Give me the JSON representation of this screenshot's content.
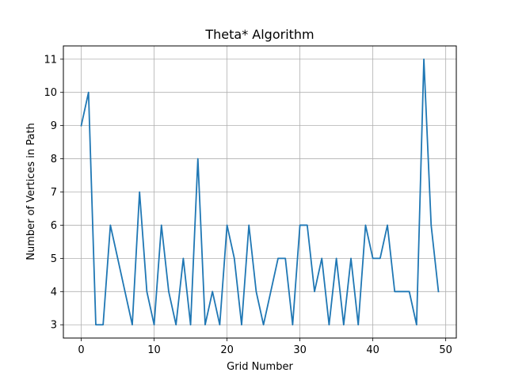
{
  "chart_data": {
    "type": "line",
    "title": "Theta* Algorithm",
    "xlabel": "Grid Number",
    "ylabel": "Number of Vertices in Path",
    "xlim": [
      -2.45,
      51.45
    ],
    "ylim": [
      2.6,
      11.4
    ],
    "xticks": [
      0,
      10,
      20,
      30,
      40,
      50
    ],
    "yticks": [
      3,
      4,
      5,
      6,
      7,
      8,
      9,
      10,
      11
    ],
    "grid": true,
    "series": [
      {
        "color": "#1f77b4",
        "x": [
          0,
          1,
          2,
          3,
          4,
          5,
          6,
          7,
          8,
          9,
          10,
          11,
          12,
          13,
          14,
          15,
          16,
          17,
          18,
          19,
          20,
          21,
          22,
          23,
          24,
          25,
          26,
          27,
          28,
          29,
          30,
          31,
          32,
          33,
          34,
          35,
          36,
          37,
          38,
          39,
          40,
          41,
          42,
          43,
          44,
          45,
          46,
          47,
          48,
          49
        ],
        "y": [
          9,
          10,
          3,
          3,
          6,
          5,
          4,
          3,
          7,
          4,
          3,
          6,
          4,
          3,
          5,
          3,
          8,
          3,
          4,
          3,
          6,
          5,
          3,
          6,
          4,
          3,
          4,
          5,
          5,
          3,
          6,
          6,
          4,
          5,
          3,
          5,
          3,
          5,
          3,
          6,
          5,
          5,
          6,
          4,
          4,
          4,
          3,
          11,
          6,
          4
        ]
      }
    ]
  }
}
